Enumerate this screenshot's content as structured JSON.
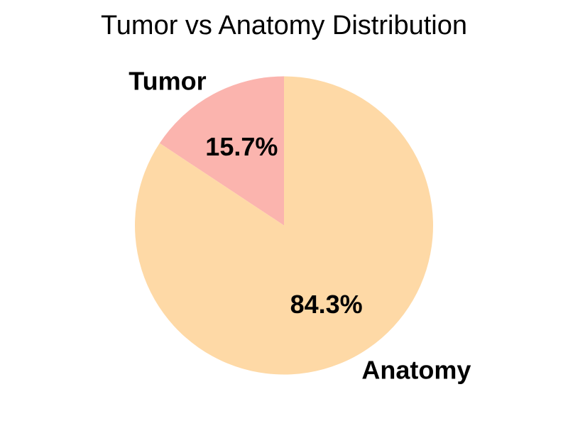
{
  "page": {
    "background": "#FFFFFF",
    "text_color": "#000000"
  },
  "chart_data": {
    "type": "pie",
    "title": "Tumor vs Anatomy Distribution",
    "labels": [
      "Tumor",
      "Anatomy"
    ],
    "values": [
      15.7,
      84.3
    ],
    "pct_labels": [
      "15.7%",
      "84.3%"
    ],
    "colors": [
      "#FBB4AE",
      "#FED9A6"
    ],
    "start_angle_deg": 90,
    "direction": "counterclockwise",
    "legend": false,
    "grid": false,
    "label_distance": 1.1,
    "pct_distance": 0.6
  }
}
